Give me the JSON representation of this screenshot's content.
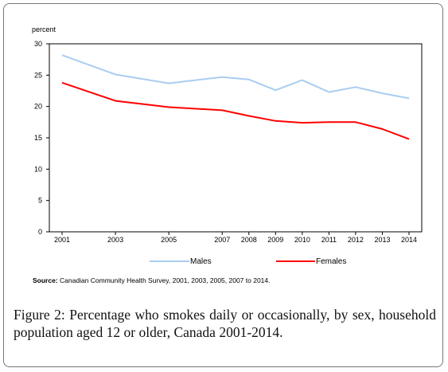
{
  "chart_data": {
    "type": "line",
    "ylabel": "percent",
    "xlabel": "",
    "ylim": [
      0,
      30
    ],
    "yticks": [
      0,
      5,
      10,
      15,
      20,
      25,
      30
    ],
    "grid": false,
    "legend_position": "bottom",
    "x": [
      "2001",
      "2003",
      "2005",
      "2007",
      "2008",
      "2009",
      "2010",
      "2011",
      "2012",
      "2013",
      "2014"
    ],
    "series": [
      {
        "name": "Males",
        "color": "#a9cdf0",
        "values": [
          28.2,
          25.1,
          23.7,
          24.7,
          24.3,
          22.6,
          24.2,
          22.3,
          23.1,
          22.1,
          21.3
        ]
      },
      {
        "name": "Females",
        "color": "#ff0000",
        "values": [
          23.8,
          20.9,
          19.9,
          19.4,
          18.5,
          17.7,
          17.4,
          17.5,
          17.5,
          16.4,
          14.8
        ]
      }
    ]
  },
  "source": {
    "label": "Source:",
    "text": "Canadian Community Health Survey, 2001, 2003, 2005, 2007 to 2014."
  },
  "caption": {
    "label": "Figure 2:",
    "text": "Percentage who smokes daily or occasionally, by sex, household population aged 12 or older, Canada 2001-2014."
  }
}
